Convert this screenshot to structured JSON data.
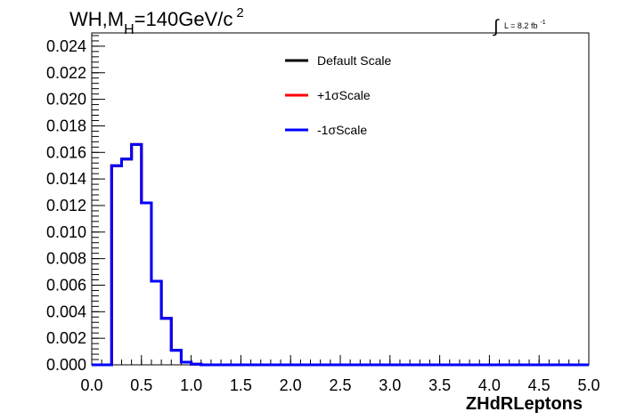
{
  "chart_data": {
    "type": "line",
    "title": {
      "main": "WH,M",
      "subscript": "H",
      "rest": "=140GeV/c",
      "superscript": "2"
    },
    "luminosity": {
      "text": "L = 8.2 fb",
      "superscript": "-1"
    },
    "xlabel": "ZHdRLeptons",
    "ylabel": "",
    "xlim": [
      0.0,
      5.0
    ],
    "ylim": [
      0.0,
      0.025
    ],
    "x_ticks": [
      "0.0",
      "0.5",
      "1.0",
      "1.5",
      "2.0",
      "2.5",
      "3.0",
      "3.5",
      "4.0",
      "4.5",
      "5.0"
    ],
    "y_ticks": [
      "0.000",
      "0.002",
      "0.004",
      "0.006",
      "0.008",
      "0.010",
      "0.012",
      "0.014",
      "0.016",
      "0.018",
      "0.020",
      "0.022",
      "0.024"
    ],
    "bin_width": 0.1,
    "x": [
      0.0,
      0.1,
      0.2,
      0.3,
      0.4,
      0.5,
      0.6,
      0.7,
      0.8,
      0.9,
      1.0,
      1.1,
      1.2,
      1.3,
      1.4,
      1.5,
      1.6,
      1.7,
      1.8,
      1.9,
      2.0,
      2.1,
      2.2,
      2.3,
      2.4,
      2.5,
      2.6,
      2.7,
      2.8,
      2.9,
      3.0,
      3.1,
      3.2,
      3.3,
      3.4,
      3.5,
      3.6,
      3.7,
      3.8,
      3.9,
      4.0,
      4.1,
      4.2,
      4.3,
      4.4,
      4.5,
      4.6,
      4.7,
      4.8,
      4.9
    ],
    "series": [
      {
        "name": "Default Scale",
        "color": "#000000",
        "values": [
          0,
          0,
          0.015,
          0.0155,
          0.0166,
          0.0122,
          0.0063,
          0.0035,
          0.0011,
          0.0002,
          5e-05,
          0,
          0,
          0,
          0,
          0,
          0,
          0,
          0,
          0,
          0,
          0,
          0,
          0,
          0,
          0,
          0,
          0,
          0,
          0,
          0,
          0,
          0,
          0,
          0,
          0,
          0,
          0,
          0,
          0,
          0,
          0,
          0,
          0,
          0,
          0,
          0,
          0,
          0,
          0
        ]
      },
      {
        "name": "+1σScale",
        "color": "#ff0000",
        "values": [
          0,
          0,
          0.015,
          0.0155,
          0.0166,
          0.0122,
          0.0063,
          0.0035,
          0.0011,
          0.0002,
          5e-05,
          0,
          0,
          0,
          0,
          0,
          0,
          0,
          0,
          0,
          0,
          0,
          0,
          0,
          0,
          0,
          0,
          0,
          0,
          0,
          0,
          0,
          0,
          0,
          0,
          0,
          0,
          0,
          0,
          0,
          0,
          0,
          0,
          0,
          0,
          0,
          0,
          0,
          0,
          0
        ]
      },
      {
        "name": "-1σScale",
        "color": "#0000ff",
        "values": [
          0,
          0,
          0.015,
          0.0155,
          0.0166,
          0.0122,
          0.0063,
          0.0035,
          0.0011,
          0.0002,
          5e-05,
          0,
          0,
          0,
          0,
          0,
          0,
          0,
          0,
          0,
          0,
          0,
          0,
          0,
          0,
          0,
          0,
          0,
          0,
          0,
          0,
          0,
          0,
          0,
          0,
          0,
          0,
          0,
          0,
          0,
          0,
          0,
          0,
          0,
          0,
          0,
          0,
          0,
          0,
          0
        ]
      }
    ],
    "legend": {
      "placement": "top-center",
      "entries": [
        "Default Scale",
        "+1σScale",
        "-1σScale"
      ]
    },
    "grid": false
  }
}
